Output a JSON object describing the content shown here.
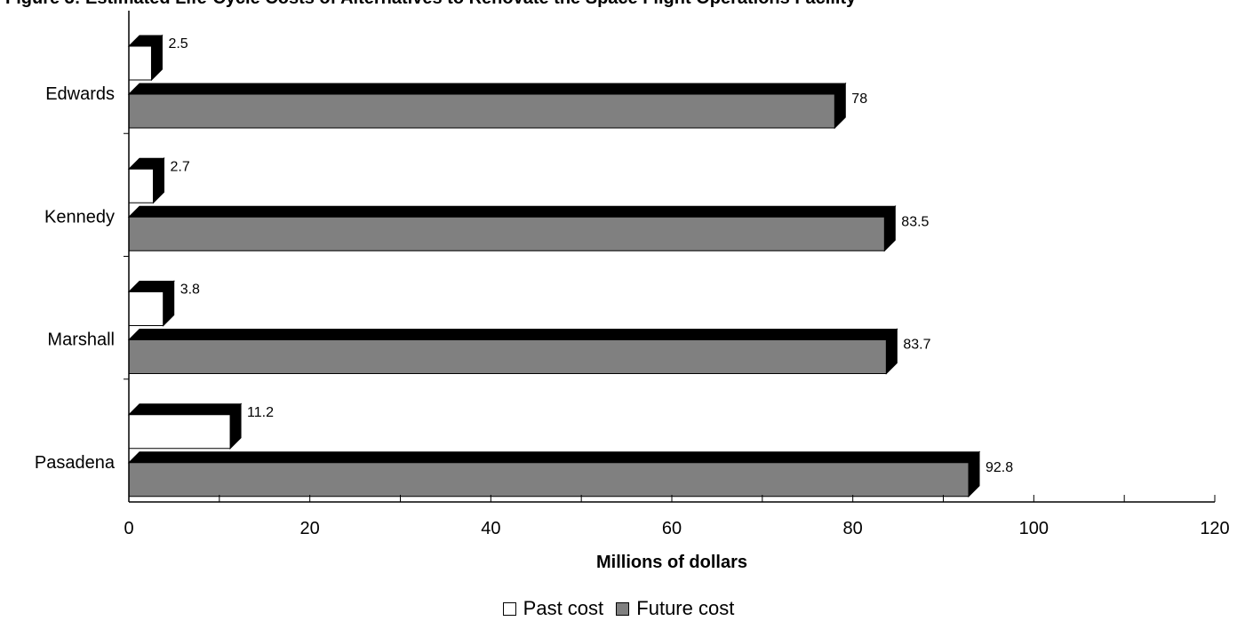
{
  "chart_data": {
    "type": "bar",
    "orientation": "horizontal",
    "title": "Figure 3: Estimated Life-Cycle Costs of Alternatives to Renovate the Space Flight Operations Facility",
    "categories": [
      "Edwards",
      "Kennedy",
      "Marshall",
      "Pasadena"
    ],
    "series": [
      {
        "name": "Past cost",
        "values": [
          2.5,
          2.7,
          3.8,
          11.2
        ]
      },
      {
        "name": "Future cost",
        "values": [
          78,
          83.5,
          83.7,
          92.8
        ]
      }
    ],
    "xlabel": "Millions of dollars",
    "ylabel": "",
    "xlim": [
      0,
      120
    ],
    "x_ticks": [
      0,
      20,
      40,
      60,
      80,
      100,
      120
    ],
    "grid": false,
    "legend_position": "bottom",
    "colors": {
      "past": "#ffffff",
      "future": "#808080",
      "shadow": "#000000",
      "outline": "#000000"
    }
  }
}
